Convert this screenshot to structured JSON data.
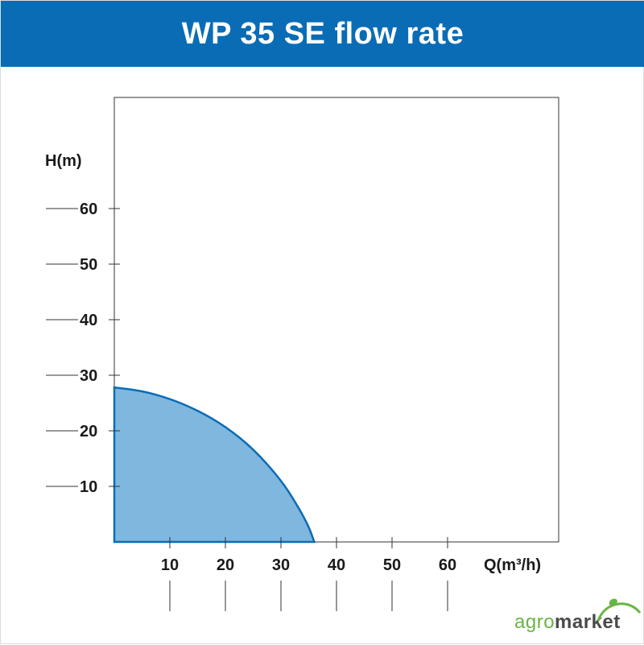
{
  "title": "WP 35 SE flow rate",
  "chart_data": {
    "type": "area",
    "title": "WP 35 SE flow rate",
    "xlabel": "Q(m³/h)",
    "ylabel": "H(m)",
    "xlim": [
      0,
      80
    ],
    "ylim": [
      0,
      80
    ],
    "x_ticks": [
      10,
      20,
      30,
      40,
      50,
      60
    ],
    "y_ticks": [
      10,
      20,
      30,
      40,
      50,
      60
    ],
    "grid": false,
    "series": [
      {
        "x": [
          0,
          5,
          10,
          15,
          20,
          25,
          30,
          33,
          35,
          36
        ],
        "y": [
          27.8,
          27.2,
          25.8,
          23.7,
          20.8,
          16.8,
          11.2,
          6.5,
          2.8,
          0
        ],
        "fill": "#7fb7df",
        "stroke": "#0a6cb5"
      }
    ]
  },
  "logo": {
    "part1": "agro",
    "part2": "market"
  },
  "colors": {
    "header": "#0a6cb5",
    "fill": "#7fb7df",
    "stroke": "#0a6cb5",
    "logo_green": "#6ab445"
  }
}
